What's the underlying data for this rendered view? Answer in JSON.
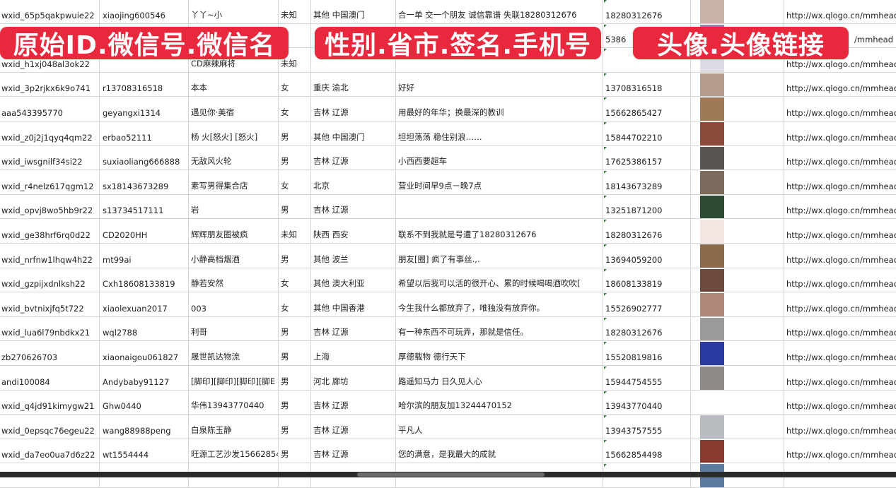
{
  "overlay_labels": [
    "原始ID.微信号.微信名",
    "性别.省市.签名.手机号",
    "头像.头像链接"
  ],
  "rows": [
    {
      "id": "wxid_65p5qakpwuie22",
      "wechat": "xiaojing600546",
      "name": "丫丫~小",
      "gender": "未知",
      "region": "其他 中国澳门",
      "signature": "合一单 交一个朋友 诚信靠谱 失联18280312676",
      "phone": "18280312676",
      "avatar_color": "#c9b3a8",
      "url": "http://wx.qlogo.cn/mmhead"
    },
    {
      "id": "",
      "wechat": "",
      "name": "",
      "gender": "",
      "region": "",
      "signature": "",
      "phone": "5386",
      "avatar_color": "#8a90b0",
      "url": "/mmhead"
    },
    {
      "id": "wxid_h1xj048al3ok22",
      "wechat": "",
      "name": "CD麻辣麻将",
      "gender": "未知",
      "region": "",
      "signature": "",
      "phone": "",
      "avatar_color": "#dcdce4",
      "url": "http://wx.qlogo.cn/mmhead"
    },
    {
      "id": "wxid_3p2rjkx6k9o741",
      "wechat": "r13708316518",
      "name": "本本",
      "gender": "女",
      "region": "重庆 渝北",
      "signature": "好好",
      "phone": "13708316518",
      "avatar_color": "#b59c8c",
      "url": "http://wx.qlogo.cn/mmhead"
    },
    {
      "id": "aaa543395770",
      "wechat": "geyangxi1314",
      "name": "遇见你·美宿",
      "gender": "女",
      "region": "吉林 辽源",
      "signature": "用最好的年华；换最深的教训",
      "phone": "15662865427",
      "avatar_color": "#a07a58",
      "url": "http://wx.qlogo.cn/mmhead"
    },
    {
      "id": "wxid_z0j2j1qyq4qm22",
      "wechat": "erbao52111",
      "name": "杨 火[怒火] [怒火]",
      "gender": "男",
      "region": "其他 中国澳门",
      "signature": "坦坦荡荡 稳住别浪……",
      "phone": "15844702210",
      "avatar_color": "#8c4a3a",
      "url": "http://wx.qlogo.cn/mmhead"
    },
    {
      "id": "wxid_iwsgnilf34si22",
      "wechat": "suxiaoliang666888",
      "name": "无敌风火轮",
      "gender": "男",
      "region": "吉林 辽源",
      "signature": "小西西要超车",
      "phone": "17625386157",
      "avatar_color": "#5a5550",
      "url": "http://wx.qlogo.cn/mmhead"
    },
    {
      "id": "wxid_r4nelz617qgm12",
      "wechat": "sx18143673289",
      "name": "素写男得集合店",
      "gender": "女",
      "region": "北京",
      "signature": "营业时间早9点－晚7点",
      "phone": "18143673289",
      "avatar_color": "#7a6a5c",
      "url": "http://wx.qlogo.cn/mmhead"
    },
    {
      "id": "wxid_opvj8wo5hb9r22",
      "wechat": "s13734517111",
      "name": "岩",
      "gender": "男",
      "region": "吉林 辽源",
      "signature": "",
      "phone": "13251871200",
      "avatar_color": "#2d4a34",
      "url": "http://wx.qlogo.cn/mmhead"
    },
    {
      "id": "wxid_ge38hrf6rq0d22",
      "wechat": "CD2020HH",
      "name": "辉辉朋友圈被疯",
      "gender": "未知",
      "region": "陕西 西安",
      "signature": "联系不到我就是号遭了18280312676",
      "phone": "18280312676",
      "avatar_color": "#f3e6e2",
      "url": "http://wx.qlogo.cn/mmhead"
    },
    {
      "id": "wxid_nrfnw1lhqw4h22",
      "wechat": "mt99ai",
      "name": "小静高档烟酒",
      "gender": "男",
      "region": "其他 波兰",
      "signature": "朋友[圈] 疯了有事丝.,.",
      "phone": "13694059200",
      "avatar_color": "#8b6a4c",
      "url": "http://wx.qlogo.cn/mmhead"
    },
    {
      "id": "wxid_gzpijxdnlksh22",
      "wechat": "Cxh18608133819",
      "name": "静若安然",
      "gender": "女",
      "region": "其他 澳大利亚",
      "signature": "希望以后我可以活的很开心、累的时候喝喝酒吹吹[",
      "phone": "18608133819",
      "avatar_color": "#6b4a3c",
      "url": "http://wx.qlogo.cn/mmhead"
    },
    {
      "id": "wxid_bvtnixjfq5t722",
      "wechat": "xiaolexuan2017",
      "name": "003",
      "gender": "女",
      "region": "其他 中国香港",
      "signature": "今生我什么都放弃了，唯独没有放弃你。",
      "phone": "15526902777",
      "avatar_color": "#b08878",
      "url": "http://wx.qlogo.cn/mmhead"
    },
    {
      "id": "wxid_lua6l79nbdkx21",
      "wechat": "wql2788",
      "name": "利哥",
      "gender": "男",
      "region": "吉林 辽源",
      "signature": "有一种东西不可玩弄，那就是信任。",
      "phone": "18280312676",
      "avatar_color": "#9a9a98",
      "url": "http://wx.qlogo.cn/mmhead"
    },
    {
      "id": "zb270626703",
      "wechat": "xiaonaigou061827",
      "name": "晟世凯达物流",
      "gender": "男",
      "region": "上海",
      "signature": "厚德载物 德行天下",
      "phone": "15520819816",
      "avatar_color": "#2a3aa0",
      "url": "http://wx.qlogo.cn/mmhead"
    },
    {
      "id": "andi100084",
      "wechat": "Andybaby91127",
      "name": "[脚印][脚印][脚印][脚E",
      "gender": "男",
      "region": "河北 廊坊",
      "signature": "路遥知马力 日久见人心",
      "phone": "15944754555",
      "avatar_color": "#8e8a86",
      "url": "http://wx.qlogo.cn/mmhead"
    },
    {
      "id": "wxid_q4jd91kimygw21",
      "wechat": "Ghw0440",
      "name": "华伟13943770440",
      "gender": "男",
      "region": "吉林 辽源",
      "signature": "哈尔滨的朋友加13244470152",
      "phone": "13943770440",
      "avatar_color": "#ffffff",
      "url": "http://wx.qlogo.cn/mmhead"
    },
    {
      "id": "wxid_0epsqc76egeu22",
      "wechat": "wang88988peng",
      "name": "白泉陈玉静",
      "gender": "男",
      "region": "吉林 辽源",
      "signature": "平凡人",
      "phone": "13943757555",
      "avatar_color": "#b8bcc0",
      "url": "http://wx.qlogo.cn/mmhead"
    },
    {
      "id": "wxid_da7eo0ua7d6z22",
      "wechat": "wt1554444",
      "name": "旺源工艺沙发15662854",
      "gender": "男",
      "region": "吉林 辽源",
      "signature": "您的满意，是我最大的成就",
      "phone": "15662854498",
      "avatar_color": "#8a3a2c",
      "url": "http://wx.qlogo.cn/mmhead"
    },
    {
      "id": "",
      "wechat": "",
      "name": "",
      "gender": "",
      "region": "",
      "signature": "",
      "phone": "",
      "avatar_color": "#5a7aa0",
      "url": ""
    }
  ]
}
